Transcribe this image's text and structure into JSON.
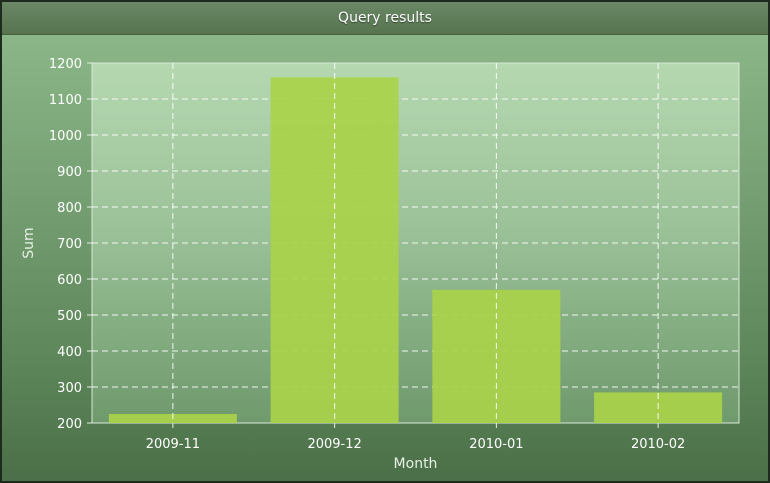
{
  "window": {
    "title": "Query results"
  },
  "chart_data": {
    "type": "bar",
    "categories": [
      "2009-11",
      "2009-12",
      "2010-01",
      "2010-02"
    ],
    "values": [
      225,
      1160,
      570,
      285
    ],
    "xlabel": "Month",
    "ylabel": "Sum",
    "ylim": [
      200,
      1200
    ],
    "yticks": [
      200,
      300,
      400,
      500,
      600,
      700,
      800,
      900,
      1000,
      1100,
      1200
    ],
    "grid": true,
    "legend": "none",
    "colors": {
      "bar": "#a9d24a",
      "grid": "#ffffff",
      "plot_bg_top": "#b4d7b2",
      "plot_bg_bottom": "#6f9a6c"
    }
  }
}
